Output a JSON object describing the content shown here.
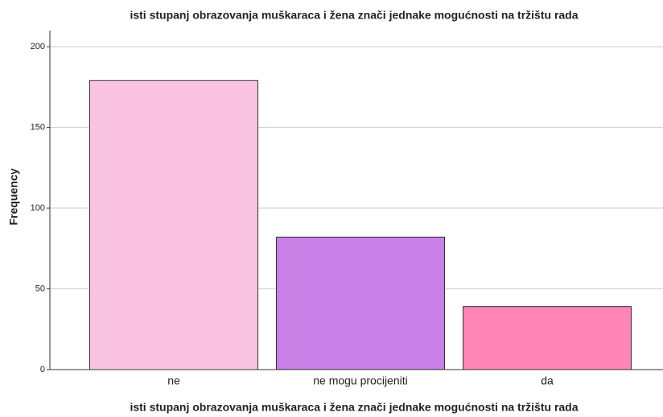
{
  "chart_data": {
    "type": "bar",
    "title": "isti stupanj obrazovanja muškaraca i žena znači jednake mogućnosti na tržištu rada",
    "x_label": "isti stupanj obrazovanja muškaraca i žena znači jednake mogućnosti na tržištu rada",
    "y_label": "Frequency",
    "categories": [
      "ne",
      "ne mogu procijeniti",
      "da"
    ],
    "values": [
      179,
      82,
      39
    ],
    "colors": [
      "#fbc3e2",
      "#c87fe6",
      "#ff85b6"
    ],
    "ylim": [
      0,
      210
    ],
    "yticks": [
      0,
      50,
      100,
      150,
      200
    ],
    "grid": true
  }
}
